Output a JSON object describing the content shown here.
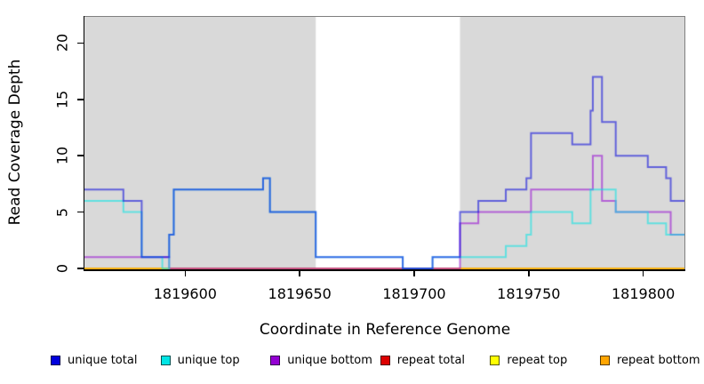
{
  "chart_data": {
    "type": "step-line",
    "title": "",
    "xlabel": "Coordinate in Reference Genome",
    "ylabel": "Read Coverage Depth",
    "xlim": [
      1819556,
      1819818
    ],
    "ylim": [
      0,
      22.4
    ],
    "x_ticks": [
      1819600,
      1819650,
      1819700,
      1819750,
      1819800
    ],
    "y_ticks": [
      0,
      5,
      10,
      15,
      20
    ],
    "grid": false,
    "legend_position": "bottom",
    "panel_background": "#d9d9d9",
    "shaded_regions": [
      [
        1819556,
        1819657
      ],
      [
        1819720,
        1819818
      ]
    ],
    "unshaded_color": "#ffffff",
    "line_alpha": 0.55,
    "line_width": 2,
    "draw_order": [
      "repeat total",
      "repeat top",
      "repeat bottom",
      "unique bottom",
      "unique top",
      "unique total"
    ],
    "series": [
      {
        "name": "unique total",
        "color": "#0000dd",
        "points": [
          [
            1819556,
            7
          ],
          [
            1819573,
            6
          ],
          [
            1819581,
            1
          ],
          [
            1819593,
            3
          ],
          [
            1819595,
            7
          ],
          [
            1819634,
            8
          ],
          [
            1819637,
            5
          ],
          [
            1819657,
            1
          ],
          [
            1819695,
            0
          ],
          [
            1819708,
            1
          ],
          [
            1819720,
            5
          ],
          [
            1819728,
            6
          ],
          [
            1819740,
            7
          ],
          [
            1819749,
            8
          ],
          [
            1819751,
            12
          ],
          [
            1819769,
            11
          ],
          [
            1819777,
            14
          ],
          [
            1819778,
            17
          ],
          [
            1819782,
            13
          ],
          [
            1819788,
            10
          ],
          [
            1819802,
            9
          ],
          [
            1819810,
            8
          ],
          [
            1819812,
            6
          ]
        ]
      },
      {
        "name": "unique top",
        "color": "#00e5e5",
        "points": [
          [
            1819556,
            6
          ],
          [
            1819573,
            5
          ],
          [
            1819581,
            1
          ],
          [
            1819590,
            0
          ],
          [
            1819593,
            3
          ],
          [
            1819595,
            7
          ],
          [
            1819634,
            8
          ],
          [
            1819637,
            5
          ],
          [
            1819657,
            1
          ],
          [
            1819695,
            0
          ],
          [
            1819708,
            1
          ],
          [
            1819740,
            2
          ],
          [
            1819749,
            3
          ],
          [
            1819751,
            5
          ],
          [
            1819769,
            4
          ],
          [
            1819777,
            7
          ],
          [
            1819788,
            5
          ],
          [
            1819802,
            4
          ],
          [
            1819810,
            3
          ]
        ]
      },
      {
        "name": "unique bottom",
        "color": "#9400d3",
        "points": [
          [
            1819556,
            1
          ],
          [
            1819593,
            0
          ],
          [
            1819720,
            4
          ],
          [
            1819728,
            5
          ],
          [
            1819751,
            7
          ],
          [
            1819778,
            10
          ],
          [
            1819782,
            6
          ],
          [
            1819788,
            5
          ],
          [
            1819812,
            3
          ]
        ]
      },
      {
        "name": "repeat total",
        "color": "#dd0000",
        "points": [
          [
            1819556,
            0
          ]
        ]
      },
      {
        "name": "repeat top",
        "color": "#ffff00",
        "points": [
          [
            1819556,
            0
          ]
        ]
      },
      {
        "name": "repeat bottom",
        "color": "#ffa500",
        "points": [
          [
            1819556,
            0
          ]
        ]
      }
    ]
  }
}
